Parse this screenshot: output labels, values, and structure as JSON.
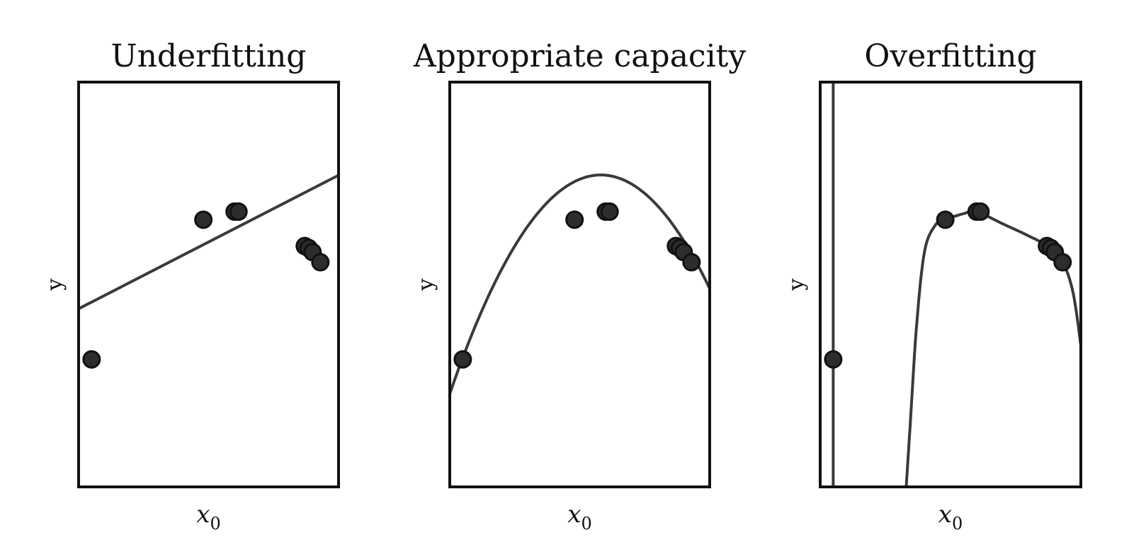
{
  "chart_data": [
    {
      "type": "scatter",
      "title": "Underfitting",
      "xlabel": "x",
      "xlabel_sub": "0",
      "ylabel": "y",
      "xlim": [
        0,
        1
      ],
      "ylim": [
        0,
        1
      ],
      "grid": false,
      "points": [
        [
          0.05,
          0.315
        ],
        [
          0.48,
          0.66
        ],
        [
          0.6,
          0.68
        ],
        [
          0.615,
          0.68
        ],
        [
          0.87,
          0.595
        ],
        [
          0.885,
          0.59
        ],
        [
          0.9,
          0.58
        ],
        [
          0.93,
          0.555
        ]
      ],
      "fit": {
        "kind": "linear",
        "slope": 0.33,
        "intercept": 0.44
      }
    },
    {
      "type": "scatter",
      "title": "Appropriate capacity",
      "xlabel": "x",
      "xlabel_sub": "0",
      "ylabel": "y",
      "xlim": [
        0,
        1
      ],
      "ylim": [
        0,
        1
      ],
      "grid": false,
      "points": [
        [
          0.05,
          0.315
        ],
        [
          0.48,
          0.66
        ],
        [
          0.6,
          0.68
        ],
        [
          0.615,
          0.68
        ],
        [
          0.87,
          0.595
        ],
        [
          0.885,
          0.59
        ],
        [
          0.9,
          0.58
        ],
        [
          0.93,
          0.555
        ]
      ],
      "fit": {
        "kind": "quadratic",
        "a": -1.6,
        "b": 1.86,
        "c": 0.23
      }
    },
    {
      "type": "scatter",
      "title": "Overfitting",
      "xlabel": "x",
      "xlabel_sub": "0",
      "ylabel": "y",
      "xlim": [
        0,
        1
      ],
      "ylim": [
        0,
        1
      ],
      "grid": false,
      "points": [
        [
          0.05,
          0.315
        ],
        [
          0.48,
          0.66
        ],
        [
          0.6,
          0.68
        ],
        [
          0.615,
          0.68
        ],
        [
          0.87,
          0.595
        ],
        [
          0.885,
          0.59
        ],
        [
          0.9,
          0.58
        ],
        [
          0.93,
          0.555
        ]
      ],
      "fit": {
        "kind": "high-degree polynomial",
        "segments": [
          [
            [
              0.05,
              1.0
            ],
            [
              0.05,
              0.0
            ]
          ],
          [
            [
              0.33,
              0.0
            ],
            [
              0.345,
              0.15
            ],
            [
              0.37,
              0.4
            ],
            [
              0.4,
              0.58
            ],
            [
              0.44,
              0.645
            ],
            [
              0.48,
              0.66
            ],
            [
              0.55,
              0.675
            ],
            [
              0.6,
              0.68
            ],
            [
              0.7,
              0.65
            ],
            [
              0.8,
              0.62
            ],
            [
              0.87,
              0.595
            ],
            [
              0.93,
              0.555
            ],
            [
              0.97,
              0.48
            ],
            [
              1.0,
              0.35
            ]
          ]
        ]
      }
    }
  ]
}
